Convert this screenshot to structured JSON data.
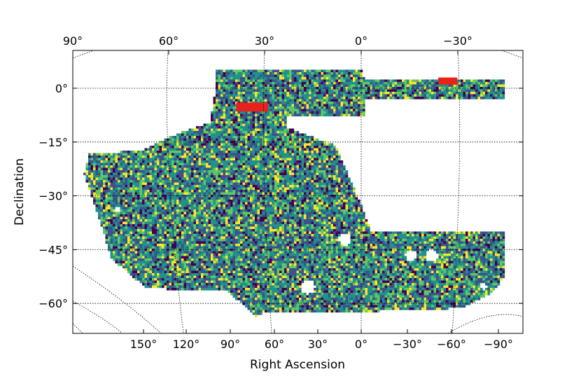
{
  "chart_data": {
    "type": "heatmap",
    "title": "",
    "xlabel": "Right Ascension",
    "ylabel": "Declination",
    "top_ticks": [
      "90°",
      "60°",
      "30°",
      "0°",
      "−30°"
    ],
    "top_tick_values": [
      90,
      60,
      30,
      0,
      -30
    ],
    "bottom_ticks": [
      "150°",
      "120°",
      "90°",
      "60°",
      "30°",
      "0°",
      "−30°",
      "−60°",
      "−90°"
    ],
    "bottom_tick_values": [
      150,
      120,
      90,
      60,
      30,
      0,
      -30,
      -60,
      -90
    ],
    "dec_ticks": [
      "0°",
      "−15°",
      "−30°",
      "−45°",
      "−60°"
    ],
    "dec_tick_values": [
      0,
      -15,
      -30,
      -45,
      -60
    ],
    "ra_range": [
      90,
      -45
    ],
    "dec_range": [
      10,
      -72
    ],
    "grid": true,
    "colormap": [
      "#440154",
      "#3b528b",
      "#21918c",
      "#5ec962",
      "#fde725"
    ],
    "highlight_color": "#e8221b",
    "highlight_regions": [
      {
        "ra": [
          39,
          29
        ],
        "dec": [
          -4,
          -6.5
        ]
      },
      {
        "ra": [
          -24,
          -30
        ],
        "dec": [
          3,
          1
        ]
      }
    ]
  }
}
